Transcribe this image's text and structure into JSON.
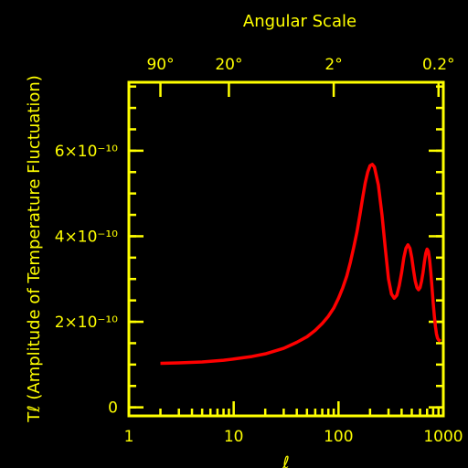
{
  "chart_data": {
    "type": "line",
    "title": "",
    "top_axis_label": "Angular Scale",
    "top_ticks": [
      {
        "l": 2,
        "label": "90°"
      },
      {
        "l": 9,
        "label": "20°"
      },
      {
        "l": 90,
        "label": "2°"
      },
      {
        "l": 900,
        "label": "0.2°"
      }
    ],
    "xlabel": "ℓ",
    "ylabel": "Tℓ (Amplitude of Temperature Fluctuation)",
    "xscale": "log",
    "xlim": [
      1,
      1000
    ],
    "ylim": [
      -2e-11,
      7.6e-10
    ],
    "x_ticks": [
      {
        "value": 1,
        "label": "1"
      },
      {
        "value": 10,
        "label": "10"
      },
      {
        "value": 100,
        "label": "100"
      },
      {
        "value": 1000,
        "label": "1000"
      }
    ],
    "y_ticks": [
      {
        "value": 0,
        "label": "0"
      },
      {
        "value": 2e-10,
        "label": "2×10⁻¹⁰"
      },
      {
        "value": 4e-10,
        "label": "4×10⁻¹⁰"
      },
      {
        "value": 6e-10,
        "label": "6×10⁻¹⁰"
      }
    ],
    "grid": false,
    "series": [
      {
        "color": "#ff0000",
        "x": [
          2,
          3,
          5,
          8,
          10,
          15,
          20,
          30,
          40,
          50,
          60,
          70,
          80,
          90,
          100,
          110,
          120,
          130,
          140,
          150,
          160,
          170,
          180,
          190,
          200,
          210,
          220,
          240,
          260,
          280,
          300,
          320,
          340,
          360,
          380,
          400,
          420,
          440,
          460,
          480,
          500,
          520,
          540,
          560,
          580,
          600,
          620,
          640,
          660,
          680,
          700,
          720,
          740,
          760,
          780,
          800,
          820,
          840,
          860,
          880,
          900,
          920,
          940
        ],
        "y": [
          1.03e-10,
          1.04e-10,
          1.06e-10,
          1.1e-10,
          1.13e-10,
          1.19e-10,
          1.25e-10,
          1.38e-10,
          1.52e-10,
          1.65e-10,
          1.8e-10,
          1.96e-10,
          2.13e-10,
          2.32e-10,
          2.55e-10,
          2.8e-10,
          3.07e-10,
          3.4e-10,
          3.75e-10,
          4.1e-10,
          4.5e-10,
          4.9e-10,
          5.25e-10,
          5.5e-10,
          5.65e-10,
          5.68e-10,
          5.62e-10,
          5.2e-10,
          4.5e-10,
          3.7e-10,
          3e-10,
          2.65e-10,
          2.55e-10,
          2.62e-10,
          2.85e-10,
          3.15e-10,
          3.5e-10,
          3.72e-10,
          3.8e-10,
          3.72e-10,
          3.5e-10,
          3.2e-10,
          2.95e-10,
          2.8e-10,
          2.75e-10,
          2.8e-10,
          2.95e-10,
          3.15e-10,
          3.4e-10,
          3.6e-10,
          3.7e-10,
          3.65e-10,
          3.45e-10,
          3.15e-10,
          2.8e-10,
          2.45e-10,
          2.15e-10,
          1.9e-10,
          1.72e-10,
          1.62e-10,
          1.58e-10,
          1.56e-10,
          1.55e-10
        ]
      }
    ]
  }
}
